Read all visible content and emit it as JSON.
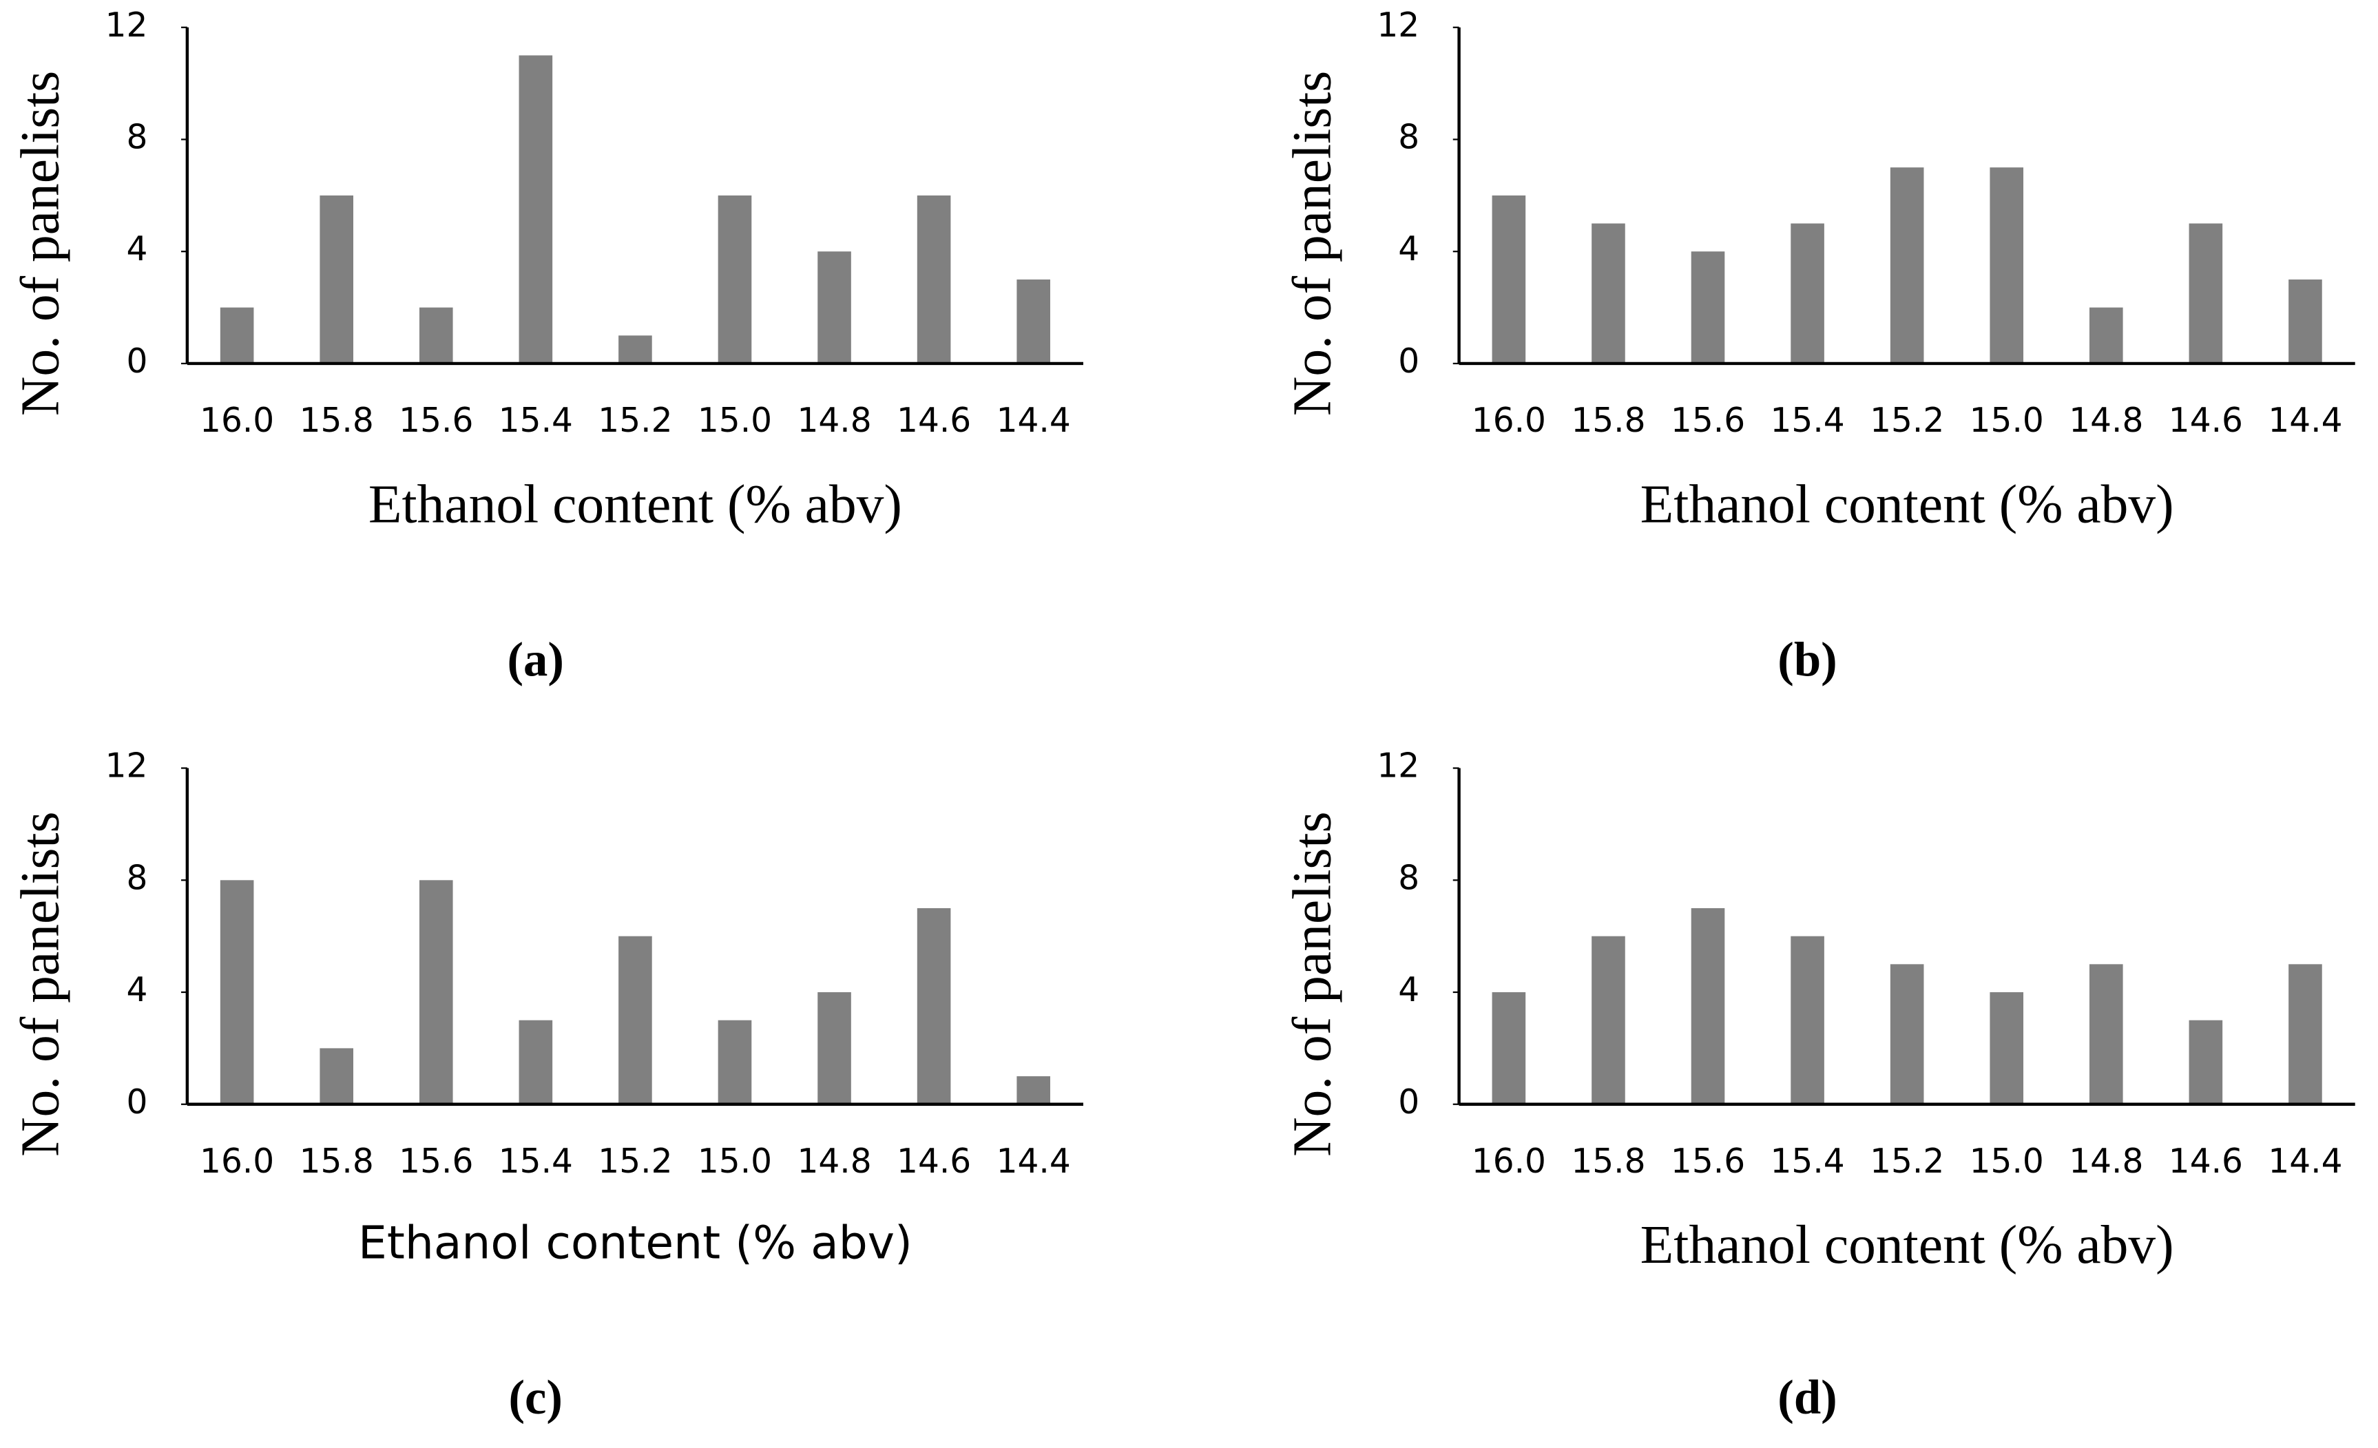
{
  "chart_data": [
    {
      "type": "bar",
      "caption": "(a)",
      "x_label": "Ethanol content (% abv)",
      "y_label": "No. of panelists",
      "categories": [
        "16.0",
        "15.8",
        "15.6",
        "15.4",
        "15.2",
        "15.0",
        "14.8",
        "14.6",
        "14.4"
      ],
      "values": [
        2,
        6,
        2,
        11,
        1,
        6,
        4,
        6,
        3
      ],
      "color": "#808080",
      "ylim": [
        0,
        12
      ],
      "yticks": [
        0,
        4,
        8,
        12
      ]
    },
    {
      "type": "bar",
      "caption": "(b)",
      "x_label": "Ethanol content (% abv)",
      "y_label": "No. of panelists",
      "categories": [
        "16.0",
        "15.8",
        "15.6",
        "15.4",
        "15.2",
        "15.0",
        "14.8",
        "14.6",
        "14.4"
      ],
      "values": [
        6,
        5,
        4,
        5,
        7,
        7,
        2,
        5,
        3
      ],
      "color": "#808080",
      "ylim": [
        0,
        12
      ],
      "yticks": [
        0,
        4,
        8,
        12
      ]
    },
    {
      "type": "bar",
      "caption": "(c)",
      "x_label": "Ethanol content (% abv)",
      "y_label": "No. of panelists",
      "categories": [
        "16.0",
        "15.8",
        "15.6",
        "15.4",
        "15.2",
        "15.0",
        "14.8",
        "14.6",
        "14.4"
      ],
      "values": [
        8,
        2,
        8,
        3,
        6,
        3,
        4,
        7,
        1
      ],
      "color": "#808080",
      "ylim": [
        0,
        12
      ],
      "yticks": [
        0,
        4,
        8,
        12
      ]
    },
    {
      "type": "bar",
      "caption": "(d)",
      "x_label": "Ethanol content (% abv)",
      "y_label": "No. of panelists",
      "categories": [
        "16.0",
        "15.8",
        "15.6",
        "15.4",
        "15.2",
        "15.0",
        "14.8",
        "14.6",
        "14.4"
      ],
      "values": [
        4,
        6,
        7,
        6,
        5,
        4,
        5,
        3,
        5
      ],
      "color": "#808080",
      "ylim": [
        0,
        12
      ],
      "yticks": [
        0,
        4,
        8,
        12
      ]
    }
  ]
}
